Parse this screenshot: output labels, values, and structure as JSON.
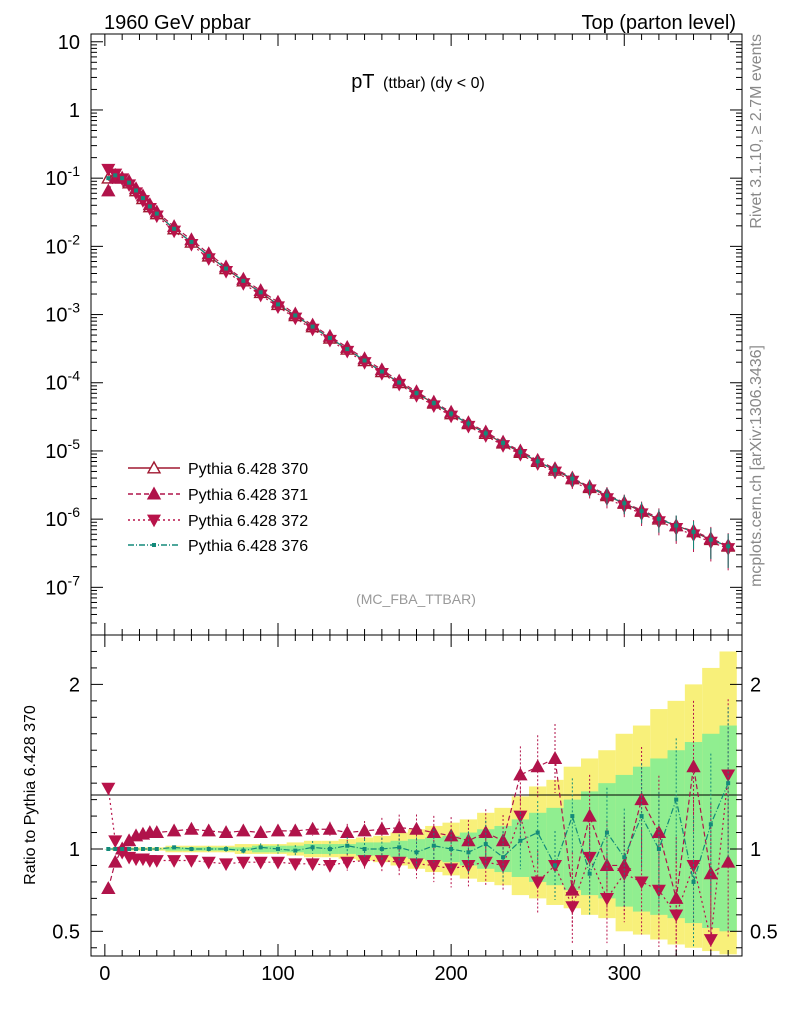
{
  "header": {
    "left": "1960 GeV ppbar",
    "right": "Top (parton level)"
  },
  "side": {
    "rivet": "Rivet 3.1.10, ≥ 2.7M events",
    "mcplots": "mcplots.cern.ch [arXiv:1306.3436]"
  },
  "plot_title": {
    "main": "pT",
    "sub": "(ttbar) (dy < 0)"
  },
  "analysis_tag": "(MC_FBA_TTBAR)",
  "ratio_ylabel": "Ratio to Pythia 6.428 370",
  "colors": {
    "p370": "#a01830",
    "p371": "#b0134a",
    "p372": "#b8134a",
    "p376": "#138a7a",
    "band_yellow": "#f8f07a",
    "band_green": "#90ee90"
  },
  "chart_data": [
    {
      "type": "scatter",
      "title": "pT (ttbar) (dy < 0)",
      "yscale": "log",
      "xlim": [
        -8,
        368
      ],
      "ylim": [
        2e-08,
        13
      ],
      "y_ticks": [
        "10^-7",
        "10^-6",
        "10^-5",
        "10^-4",
        "10^-3",
        "10^-2",
        "10^-1",
        "1",
        "10"
      ],
      "legend_position": "lower-left",
      "x": [
        2,
        6,
        10,
        14,
        18,
        22,
        26,
        30,
        40,
        50,
        60,
        70,
        80,
        90,
        100,
        110,
        120,
        130,
        140,
        150,
        160,
        170,
        180,
        190,
        200,
        210,
        220,
        230,
        240,
        250,
        260,
        270,
        280,
        290,
        300,
        310,
        320,
        330,
        340,
        350,
        360
      ],
      "series": [
        {
          "name": "Pythia 6.428 370",
          "values": [
            0.1,
            0.11,
            0.1,
            0.085,
            0.065,
            0.05,
            0.038,
            0.03,
            0.018,
            0.0115,
            0.0072,
            0.0047,
            0.0031,
            0.0021,
            0.0014,
            0.00096,
            0.00066,
            0.00045,
            0.00031,
            0.00021,
            0.000145,
            0.0001,
            7e-05,
            5e-05,
            3.5e-05,
            2.5e-05,
            1.8e-05,
            1.3e-05,
            9.5e-06,
            7e-06,
            5.2e-06,
            3.9e-06,
            2.9e-06,
            2.2e-06,
            1.7e-06,
            1.3e-06,
            1e-06,
            8e-07,
            6.5e-07,
            5e-07,
            4e-07
          ]
        },
        {
          "name": "Pythia 6.428 371",
          "values": [
            0.065,
            0.1,
            0.1,
            0.09,
            0.07,
            0.055,
            0.041,
            0.032,
            0.0195,
            0.0125,
            0.0078,
            0.005,
            0.0033,
            0.00225,
            0.00152,
            0.00102,
            0.0007,
            0.00048,
            0.00033,
            0.000225,
            0.000155,
            0.000106,
            7.4e-05,
            5.2e-05,
            3.7e-05,
            2.6e-05,
            1.9e-05,
            1.35e-05,
            1e-05,
            7.3e-06,
            5.5e-06,
            4e-06,
            3e-06,
            2.3e-06,
            1.75e-06,
            1.35e-06,
            1.05e-06,
            8e-07,
            6.7e-07,
            5.2e-07,
            4.1e-07
          ]
        },
        {
          "name": "Pythia 6.428 372",
          "values": [
            0.135,
            0.115,
            0.098,
            0.08,
            0.061,
            0.047,
            0.036,
            0.028,
            0.0168,
            0.0107,
            0.0066,
            0.0043,
            0.00285,
            0.00193,
            0.0013,
            0.00089,
            0.00061,
            0.00042,
            0.00029,
            0.000198,
            0.000137,
            9.5e-05,
            6.5e-05,
            4.6e-05,
            3.25e-05,
            2.3e-05,
            1.68e-05,
            1.2e-05,
            8.9e-06,
            6.5e-06,
            4.9e-06,
            3.6e-06,
            2.7e-06,
            2e-06,
            1.55e-06,
            1.2e-06,
            9.2e-07,
            7.3e-07,
            5.9e-07,
            4.6e-07,
            3.7e-07
          ]
        },
        {
          "name": "Pythia 6.428 376",
          "values": [
            0.1,
            0.11,
            0.1,
            0.086,
            0.066,
            0.051,
            0.0385,
            0.0302,
            0.0181,
            0.0116,
            0.00725,
            0.00473,
            0.00312,
            0.00212,
            0.00141,
            0.00097,
            0.000665,
            0.000454,
            0.000312,
            0.000212,
            0.000146,
            0.000101,
            7.05e-05,
            5.05e-05,
            3.52e-05,
            2.52e-05,
            1.81e-05,
            1.31e-05,
            9.6e-06,
            7.05e-06,
            5.25e-06,
            3.92e-06,
            2.92e-06,
            2.22e-06,
            1.71e-06,
            1.31e-06,
            1.01e-06,
            8.05e-07,
            6.5e-07,
            5e-07,
            4e-07
          ]
        }
      ]
    },
    {
      "type": "scatter",
      "ylabel": "Ratio to Pythia 6.428 370",
      "xlim": [
        -8,
        368
      ],
      "ylim": [
        0.35,
        2.3
      ],
      "x_ticks": [
        0,
        100,
        200,
        300
      ],
      "y_ticks": [
        0.5,
        1,
        2
      ],
      "x": [
        2,
        6,
        10,
        14,
        18,
        22,
        26,
        30,
        40,
        50,
        60,
        70,
        80,
        90,
        100,
        110,
        120,
        130,
        140,
        150,
        160,
        170,
        180,
        190,
        200,
        210,
        220,
        230,
        240,
        250,
        260,
        270,
        280,
        290,
        300,
        310,
        320,
        330,
        340,
        350,
        360
      ],
      "band": {
        "yellow_low": [
          1.0,
          0.99,
          0.99,
          0.99,
          0.99,
          0.99,
          0.99,
          0.99,
          0.98,
          0.98,
          0.98,
          0.98,
          0.97,
          0.97,
          0.97,
          0.96,
          0.95,
          0.95,
          0.94,
          0.93,
          0.92,
          0.9,
          0.88,
          0.86,
          0.84,
          0.82,
          0.8,
          0.78,
          0.72,
          0.7,
          0.66,
          0.64,
          0.6,
          0.58,
          0.5,
          0.48,
          0.45,
          0.42,
          0.4,
          0.38,
          0.36
        ],
        "yellow_high": [
          1.0,
          1.01,
          1.01,
          1.01,
          1.01,
          1.01,
          1.01,
          1.01,
          1.02,
          1.02,
          1.02,
          1.02,
          1.03,
          1.03,
          1.03,
          1.04,
          1.05,
          1.05,
          1.06,
          1.07,
          1.08,
          1.1,
          1.12,
          1.14,
          1.16,
          1.18,
          1.22,
          1.25,
          1.32,
          1.38,
          1.42,
          1.5,
          1.55,
          1.6,
          1.7,
          1.75,
          1.85,
          1.9,
          2.0,
          2.1,
          2.2
        ],
        "green_low": [
          1.0,
          1.0,
          1.0,
          1.0,
          1.0,
          1.0,
          1.0,
          1.0,
          0.99,
          0.99,
          0.99,
          0.99,
          0.99,
          0.98,
          0.98,
          0.98,
          0.97,
          0.97,
          0.97,
          0.96,
          0.96,
          0.95,
          0.94,
          0.93,
          0.92,
          0.9,
          0.88,
          0.86,
          0.83,
          0.8,
          0.78,
          0.75,
          0.72,
          0.7,
          0.65,
          0.62,
          0.6,
          0.58,
          0.55,
          0.52,
          0.5
        ],
        "green_high": [
          1.0,
          1.0,
          1.0,
          1.0,
          1.0,
          1.0,
          1.0,
          1.0,
          1.01,
          1.01,
          1.01,
          1.01,
          1.01,
          1.02,
          1.02,
          1.02,
          1.03,
          1.03,
          1.03,
          1.04,
          1.04,
          1.05,
          1.06,
          1.07,
          1.08,
          1.1,
          1.12,
          1.14,
          1.18,
          1.22,
          1.25,
          1.3,
          1.35,
          1.4,
          1.45,
          1.5,
          1.55,
          1.6,
          1.65,
          1.7,
          1.75
        ]
      },
      "series": [
        {
          "name": "Pythia 6.428 371",
          "values": [
            0.76,
            0.92,
            1.0,
            1.05,
            1.08,
            1.09,
            1.1,
            1.1,
            1.11,
            1.12,
            1.11,
            1.1,
            1.11,
            1.1,
            1.11,
            1.11,
            1.12,
            1.12,
            1.1,
            1.11,
            1.12,
            1.13,
            1.12,
            1.1,
            1.08,
            1.05,
            1.1,
            1.05,
            1.45,
            1.5,
            1.55,
            0.75,
            1.2,
            0.9,
            0.9,
            1.3,
            1.1,
            0.7,
            1.5,
            0.85,
            0.92
          ]
        },
        {
          "name": "Pythia 6.428 372",
          "values": [
            1.37,
            1.05,
            0.98,
            0.95,
            0.94,
            0.94,
            0.93,
            0.93,
            0.93,
            0.93,
            0.92,
            0.91,
            0.92,
            0.92,
            0.92,
            0.91,
            0.91,
            0.9,
            0.92,
            0.93,
            0.93,
            0.92,
            0.91,
            0.9,
            0.88,
            0.9,
            0.92,
            0.9,
            1.2,
            0.8,
            0.9,
            0.65,
            0.95,
            0.7,
            0.85,
            0.8,
            0.75,
            0.6,
            0.9,
            0.45,
            1.45
          ]
        },
        {
          "name": "Pythia 6.428 376",
          "values": [
            1.0,
            1.0,
            1.0,
            1.0,
            1.0,
            1.0,
            1.0,
            1.0,
            1.01,
            1.0,
            1.0,
            1.0,
            0.99,
            1.01,
            1.0,
            0.99,
            1.01,
            1.0,
            1.02,
            1.0,
            1.0,
            1.01,
            0.98,
            1.02,
            1.0,
            0.98,
            1.03,
            0.95,
            1.05,
            1.1,
            0.9,
            1.2,
            0.85,
            1.1,
            0.95,
            1.2,
            1.0,
            1.3,
            0.8,
            1.15,
            1.4
          ]
        }
      ]
    }
  ]
}
